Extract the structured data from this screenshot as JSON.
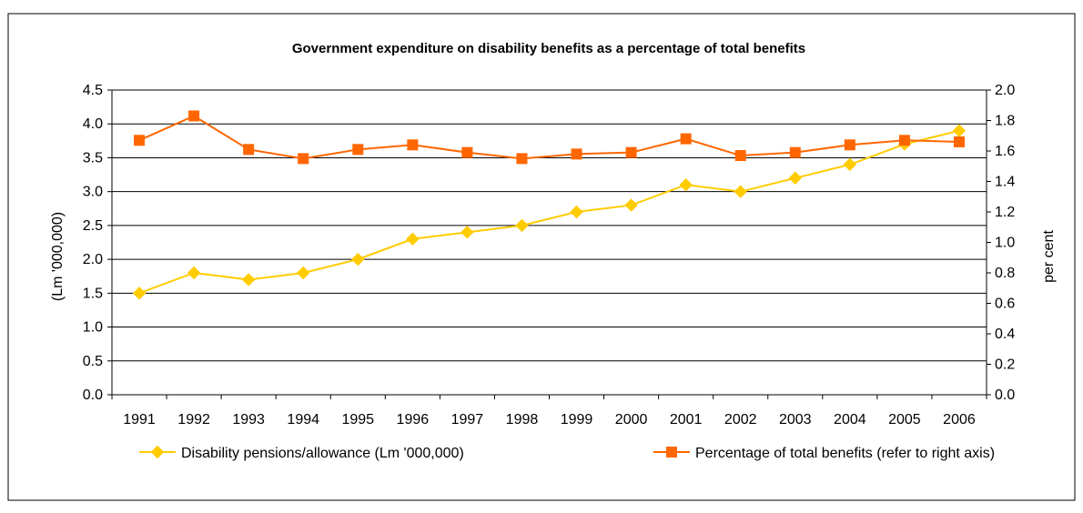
{
  "chart_data": {
    "type": "line",
    "title": "Government expenditure on disability benefits as a percentage of total benefits",
    "categories": [
      "1991",
      "1992",
      "1993",
      "1994",
      "1995",
      "1996",
      "1997",
      "1998",
      "1999",
      "2000",
      "2001",
      "2002",
      "2003",
      "2004",
      "2005",
      "2006"
    ],
    "ylabel": "(Lm '000,000)",
    "y2label": "per cent",
    "ylim": [
      0,
      4.5
    ],
    "y2lim": [
      0,
      2.0
    ],
    "yticks": [
      "0.0",
      "0.5",
      "1.0",
      "1.5",
      "2.0",
      "2.5",
      "3.0",
      "3.5",
      "4.0",
      "4.5"
    ],
    "y2ticks": [
      "0.0",
      "0.2",
      "0.4",
      "0.6",
      "0.8",
      "1.0",
      "1.2",
      "1.4",
      "1.6",
      "1.8",
      "2.0"
    ],
    "grid": true,
    "legend_position": "bottom",
    "series": [
      {
        "name": "Disability pensions/allowance (Lm '000,000)",
        "axis": "left",
        "marker": "diamond",
        "color": "#FFCC00",
        "values": [
          1.5,
          1.8,
          1.7,
          1.8,
          2.0,
          2.3,
          2.4,
          2.5,
          2.7,
          2.8,
          3.1,
          3.0,
          3.2,
          3.4,
          3.7,
          3.9
        ]
      },
      {
        "name": "Percentage of total benefits (refer to right axis)",
        "axis": "right",
        "marker": "square",
        "color": "#FF6600",
        "values": [
          1.67,
          1.83,
          1.61,
          1.55,
          1.61,
          1.64,
          1.59,
          1.55,
          1.58,
          1.59,
          1.68,
          1.57,
          1.59,
          1.64,
          1.67,
          1.66
        ]
      }
    ]
  }
}
